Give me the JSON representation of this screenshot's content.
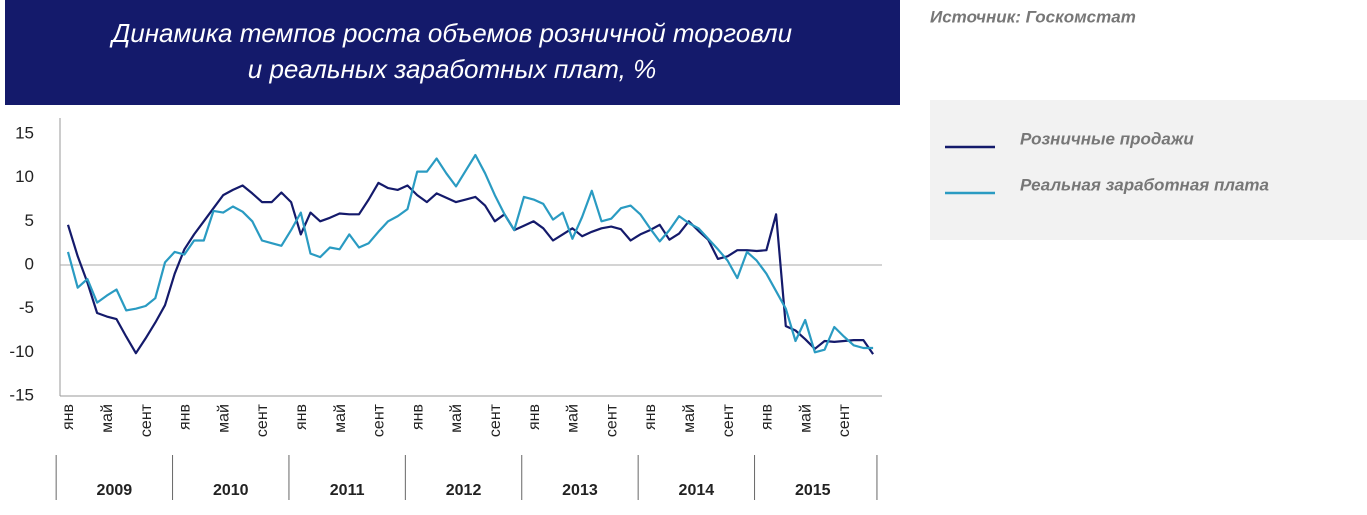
{
  "chart_data": {
    "type": "line",
    "title": [
      "Динамика темпов роста объемов розничной торговли",
      "и реальных заработных плат, %"
    ],
    "source": "Источник: Госкомстат",
    "categories": [
      "янв",
      null,
      null,
      null,
      "май",
      null,
      null,
      null,
      "сент",
      null,
      null,
      null,
      "янв",
      null,
      null,
      null,
      "май",
      null,
      null,
      null,
      "сент",
      null,
      null,
      null,
      "янв",
      null,
      null,
      null,
      "май",
      null,
      null,
      null,
      "сент",
      null,
      null,
      null,
      "янв",
      null,
      null,
      null,
      "май",
      null,
      null,
      null,
      "сент",
      null,
      null,
      null,
      "янв",
      null,
      null,
      null,
      "май",
      null,
      null,
      null,
      "сент",
      null,
      null,
      null,
      "янв",
      null,
      null,
      null,
      "май",
      null,
      null,
      null,
      "сент",
      null,
      null,
      null,
      "янв",
      null,
      null,
      null,
      "май",
      null,
      null,
      null,
      "сент",
      null,
      null,
      null
    ],
    "years": [
      "2009",
      "2010",
      "2011",
      "2012",
      "2013",
      "2014",
      "2015"
    ],
    "ylim": [
      -15,
      15
    ],
    "yticks": [
      15,
      10,
      5,
      0,
      -5,
      -10,
      -15
    ],
    "series": [
      {
        "name": "Розничные продажи",
        "color": "#141a6b",
        "values": [
          4.6,
          1.0,
          -2.0,
          -5.5,
          -5.9,
          -6.2,
          -8.2,
          -10.1,
          -8.4,
          -6.6,
          -4.6,
          -1.0,
          1.8,
          3.5,
          5.0,
          6.5,
          8.0,
          8.6,
          9.1,
          8.2,
          7.2,
          7.2,
          8.3,
          7.2,
          3.5,
          6.0,
          5.0,
          5.4,
          5.9,
          5.8,
          5.8,
          7.5,
          9.4,
          8.8,
          8.6,
          9.1,
          8.0,
          7.2,
          8.2,
          7.7,
          7.2,
          7.5,
          7.8,
          6.8,
          5.0,
          5.8,
          4.0,
          4.5,
          5.0,
          4.2,
          2.8,
          3.5,
          4.2,
          3.3,
          3.8,
          4.2,
          4.4,
          4.1,
          2.8,
          3.5,
          4.0,
          4.6,
          2.9,
          3.6,
          5.0,
          3.9,
          2.9,
          0.7,
          1.0,
          1.7,
          1.7,
          1.6,
          1.7,
          5.8,
          -7.0,
          -7.5,
          -8.5,
          -9.6,
          -8.7,
          -8.8,
          -8.7,
          -8.6,
          -8.6,
          -10.2
        ]
      },
      {
        "name": "Реальная заработная плата",
        "color": "#2a9bc2",
        "values": [
          1.5,
          -2.6,
          -1.6,
          -4.3,
          -3.5,
          -2.8,
          -5.2,
          -5.0,
          -4.7,
          -3.8,
          0.3,
          1.5,
          1.2,
          2.8,
          2.8,
          6.2,
          6.0,
          6.7,
          6.1,
          5.0,
          2.8,
          2.5,
          2.2,
          4.0,
          6.0,
          1.3,
          0.9,
          2.0,
          1.8,
          3.5,
          2.0,
          2.5,
          3.8,
          5.0,
          5.6,
          6.4,
          10.7,
          10.7,
          12.2,
          10.5,
          9.0,
          10.8,
          12.6,
          10.5,
          8.0,
          5.8,
          4.0,
          7.8,
          7.5,
          7.0,
          5.2,
          6.0,
          3.0,
          5.5,
          8.5,
          5.0,
          5.3,
          6.5,
          6.8,
          5.8,
          4.2,
          2.7,
          4.0,
          5.6,
          4.8,
          4.2,
          3.0,
          1.8,
          0.5,
          -1.5,
          1.5,
          0.5,
          -1.0,
          -3.0,
          -5.0,
          -8.7,
          -6.3,
          -10.0,
          -9.7,
          -7.1,
          -8.2,
          -9.2,
          -9.5,
          -9.5
        ]
      }
    ]
  }
}
